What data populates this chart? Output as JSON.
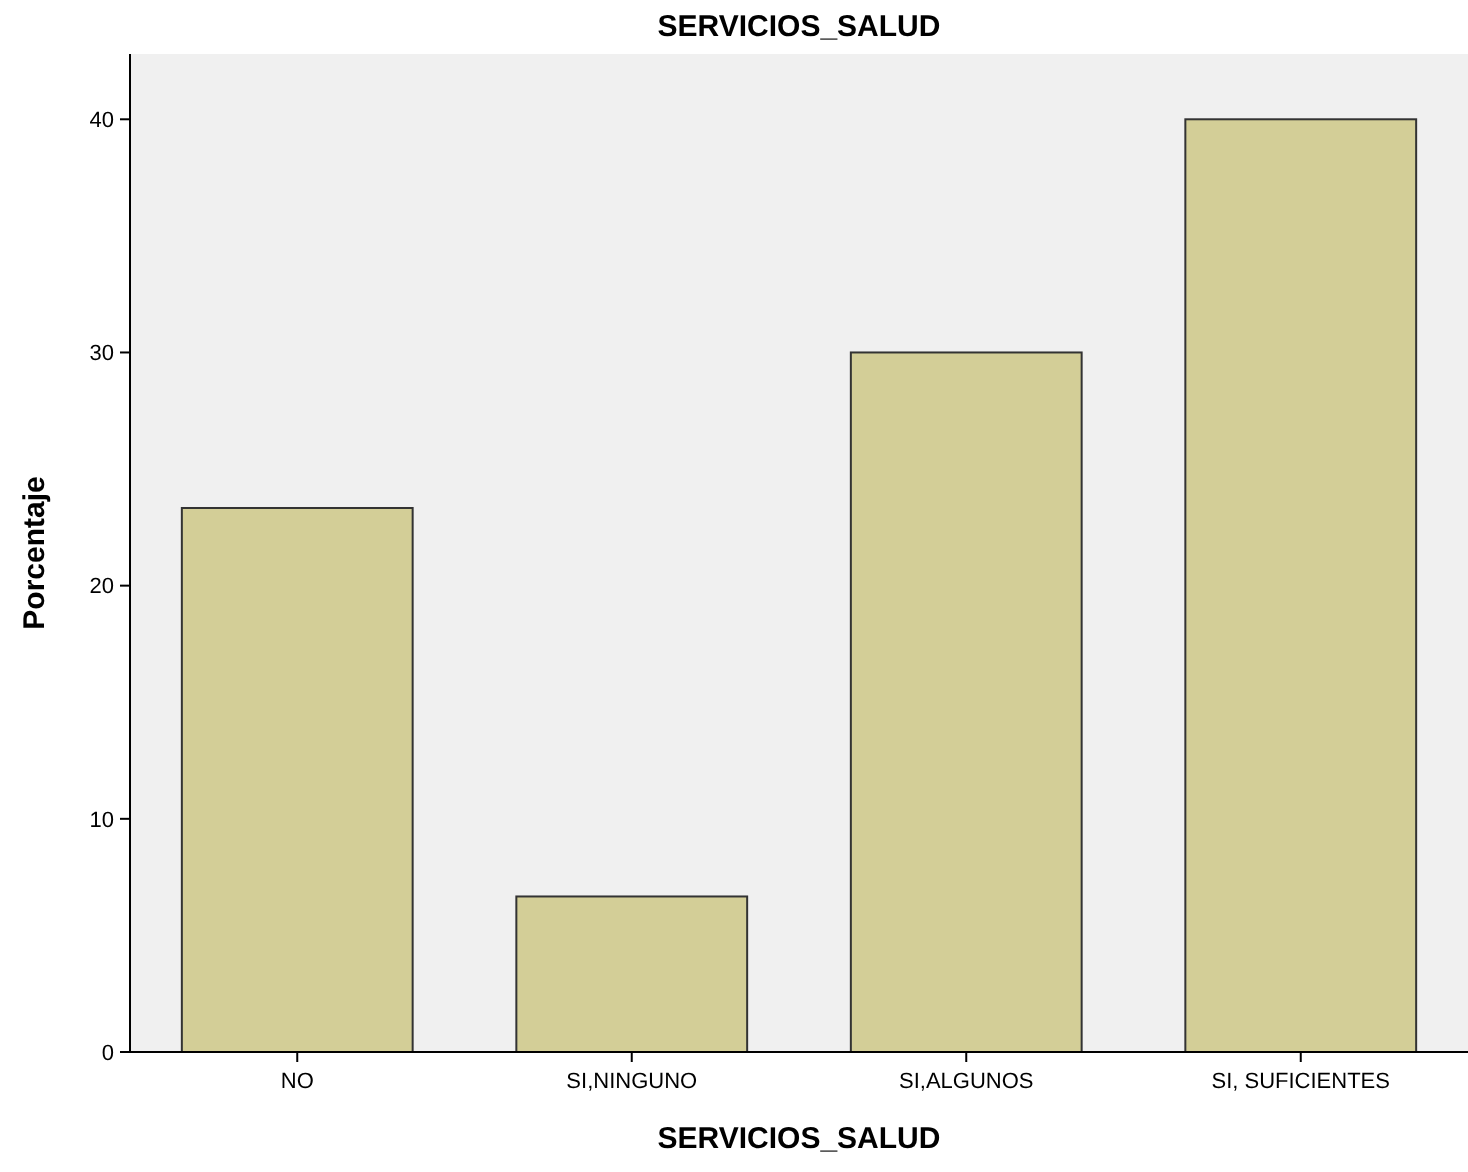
{
  "chart_data": {
    "type": "bar",
    "title": "SERVICIOS_SALUD",
    "xlabel": "SERVICIOS_SALUD",
    "ylabel": "Porcentaje",
    "categories": [
      "NO",
      "SI,NINGUNO",
      "SI,ALGUNOS",
      "SI, SUFICIENTES"
    ],
    "values": [
      23.33,
      6.67,
      30,
      40
    ],
    "color": "#d3ce97",
    "ylim": [
      0,
      42.8
    ],
    "yticks": [
      0,
      10,
      20,
      30,
      40
    ],
    "grid": false
  }
}
